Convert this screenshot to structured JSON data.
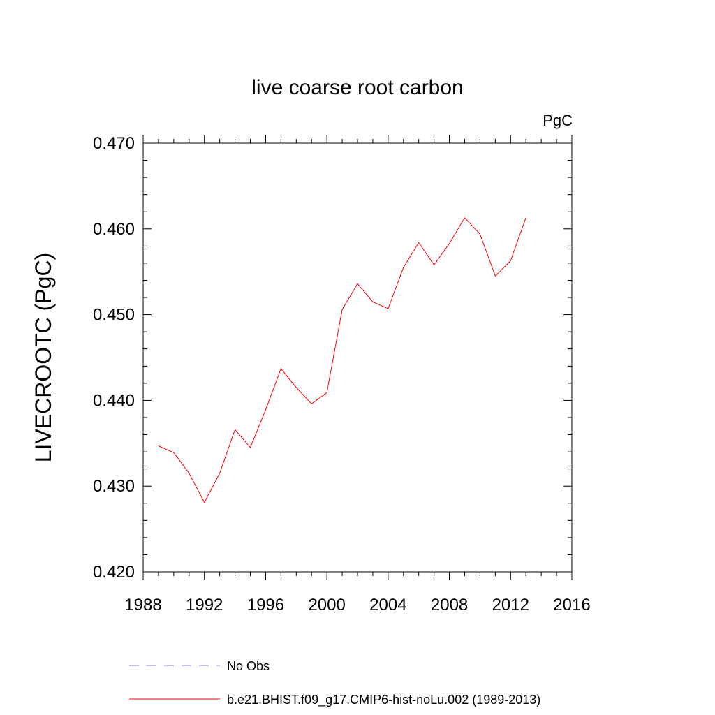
{
  "chart_data": {
    "type": "line",
    "title": "live coarse root carbon",
    "units_label": "PgC",
    "xlabel": "",
    "ylabel": "LIVECROOTC  (PgC)",
    "xlim": [
      1988,
      2016
    ],
    "ylim": [
      0.42,
      0.47
    ],
    "xticks": [
      1988,
      1992,
      1996,
      2000,
      2004,
      2008,
      2012,
      2016
    ],
    "yticks": [
      "0.420",
      "0.430",
      "0.440",
      "0.450",
      "0.460",
      "0.470"
    ],
    "grid": false,
    "legend_position": "bottom",
    "series": [
      {
        "name": "b.e21.BHIST.f09_g17.CMIP6-hist-noLu.002 (1989-2013)",
        "color": "#ff0000",
        "style": "solid",
        "x": [
          1989,
          1990,
          1991,
          1992,
          1993,
          1994,
          1995,
          1996,
          1997,
          1998,
          1999,
          2000,
          2001,
          2002,
          2003,
          2004,
          2005,
          2006,
          2007,
          2008,
          2009,
          2010,
          2011,
          2012,
          2013
        ],
        "y": [
          0.4347,
          0.4339,
          0.4315,
          0.4281,
          0.4315,
          0.4366,
          0.4345,
          0.4389,
          0.4437,
          0.4415,
          0.4396,
          0.4409,
          0.4506,
          0.4536,
          0.4515,
          0.4507,
          0.4555,
          0.4584,
          0.4558,
          0.4583,
          0.4613,
          0.4594,
          0.4545,
          0.4563,
          0.4613
        ]
      }
    ],
    "legend": [
      {
        "label": "No Obs",
        "color": "#7777cc",
        "style": "dashed"
      },
      {
        "label": "b.e21.BHIST.f09_g17.CMIP6-hist-noLu.002 (1989-2013)",
        "color": "#ff0000",
        "style": "solid"
      }
    ]
  }
}
